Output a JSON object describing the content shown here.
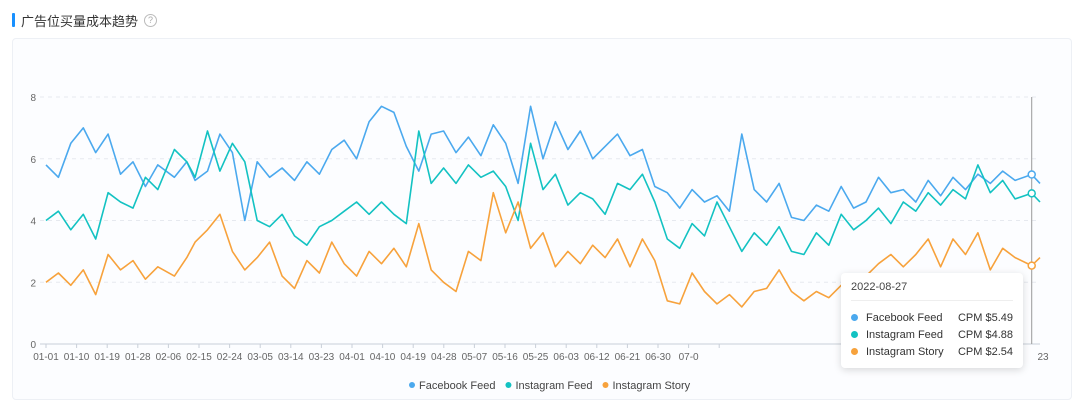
{
  "header": {
    "title": "广告位买量成本趋势",
    "help_icon": "?"
  },
  "colors": {
    "facebook": "#4ba9ee",
    "instagram_feed": "#13c2c2",
    "instagram_story": "#f7a23c",
    "accent": "#1890ff"
  },
  "tooltip": {
    "date": "2022-08-27",
    "rows": [
      {
        "name": "Facebook Feed",
        "value": "CPM $5.49"
      },
      {
        "name": "Instagram Feed",
        "value": "CPM $4.88"
      },
      {
        "name": "Instagram Story",
        "value": "CPM $2.54"
      }
    ]
  },
  "chart_data": {
    "type": "line",
    "ylim": [
      0,
      8
    ],
    "yticks": [
      0,
      2,
      4,
      6,
      8
    ],
    "grid": true,
    "legend_position": "bottom",
    "x_ticks": [
      "01-01",
      "01-10",
      "01-19",
      "01-28",
      "02-06",
      "02-15",
      "02-24",
      "03-05",
      "03-14",
      "03-23",
      "04-01",
      "04-10",
      "04-19",
      "04-28",
      "05-07",
      "05-16",
      "05-25",
      "06-03",
      "06-12",
      "06-21",
      "06-30",
      "07-0",
      "23"
    ],
    "x_start": "2022-01-01",
    "x_end": "2022-08-29",
    "hover_date": "2022-08-27",
    "series": [
      {
        "name": "Facebook Feed",
        "key": "facebook",
        "points": [
          [
            "2022-01-01",
            5.8
          ],
          [
            "2022-01-04",
            5.4
          ],
          [
            "2022-01-07",
            6.5
          ],
          [
            "2022-01-10",
            7.0
          ],
          [
            "2022-01-13",
            6.2
          ],
          [
            "2022-01-16",
            6.8
          ],
          [
            "2022-01-19",
            5.5
          ],
          [
            "2022-01-22",
            5.9
          ],
          [
            "2022-01-25",
            5.1
          ],
          [
            "2022-01-28",
            5.8
          ],
          [
            "2022-02-01",
            5.4
          ],
          [
            "2022-02-04",
            5.9
          ],
          [
            "2022-02-06",
            5.3
          ],
          [
            "2022-02-09",
            5.6
          ],
          [
            "2022-02-12",
            6.8
          ],
          [
            "2022-02-15",
            6.2
          ],
          [
            "2022-02-18",
            4.0
          ],
          [
            "2022-02-21",
            5.9
          ],
          [
            "2022-02-24",
            5.4
          ],
          [
            "2022-02-27",
            5.7
          ],
          [
            "2022-03-02",
            5.3
          ],
          [
            "2022-03-05",
            5.9
          ],
          [
            "2022-03-08",
            5.5
          ],
          [
            "2022-03-11",
            6.3
          ],
          [
            "2022-03-14",
            6.6
          ],
          [
            "2022-03-17",
            6.0
          ],
          [
            "2022-03-20",
            7.2
          ],
          [
            "2022-03-23",
            7.7
          ],
          [
            "2022-03-26",
            7.5
          ],
          [
            "2022-03-29",
            6.4
          ],
          [
            "2022-04-01",
            5.6
          ],
          [
            "2022-04-04",
            6.8
          ],
          [
            "2022-04-07",
            6.9
          ],
          [
            "2022-04-10",
            6.2
          ],
          [
            "2022-04-13",
            6.7
          ],
          [
            "2022-04-16",
            6.1
          ],
          [
            "2022-04-19",
            7.1
          ],
          [
            "2022-04-22",
            6.5
          ],
          [
            "2022-04-25",
            5.2
          ],
          [
            "2022-04-28",
            7.7
          ],
          [
            "2022-05-01",
            6.0
          ],
          [
            "2022-05-04",
            7.2
          ],
          [
            "2022-05-07",
            6.3
          ],
          [
            "2022-05-10",
            6.9
          ],
          [
            "2022-05-13",
            6.0
          ],
          [
            "2022-05-16",
            6.4
          ],
          [
            "2022-05-19",
            6.8
          ],
          [
            "2022-05-22",
            6.1
          ],
          [
            "2022-05-25",
            6.3
          ],
          [
            "2022-05-28",
            5.1
          ],
          [
            "2022-05-31",
            4.9
          ],
          [
            "2022-06-03",
            4.4
          ],
          [
            "2022-06-06",
            5.0
          ],
          [
            "2022-06-09",
            4.6
          ],
          [
            "2022-06-12",
            4.8
          ],
          [
            "2022-06-15",
            4.3
          ],
          [
            "2022-06-18",
            6.8
          ],
          [
            "2022-06-21",
            5.0
          ],
          [
            "2022-06-24",
            4.6
          ],
          [
            "2022-06-27",
            5.2
          ],
          [
            "2022-06-30",
            4.1
          ],
          [
            "2022-07-03",
            4.0
          ],
          [
            "2022-07-06",
            4.5
          ],
          [
            "2022-07-09",
            4.3
          ],
          [
            "2022-07-12",
            5.1
          ],
          [
            "2022-07-15",
            4.4
          ],
          [
            "2022-07-18",
            4.6
          ],
          [
            "2022-07-21",
            5.4
          ],
          [
            "2022-07-24",
            4.9
          ],
          [
            "2022-07-27",
            5.0
          ],
          [
            "2022-07-30",
            4.6
          ],
          [
            "2022-08-02",
            5.3
          ],
          [
            "2022-08-05",
            4.8
          ],
          [
            "2022-08-08",
            5.4
          ],
          [
            "2022-08-11",
            5.0
          ],
          [
            "2022-08-14",
            5.5
          ],
          [
            "2022-08-17",
            5.2
          ],
          [
            "2022-08-20",
            5.6
          ],
          [
            "2022-08-23",
            5.3
          ],
          [
            "2022-08-27",
            5.49
          ],
          [
            "2022-08-29",
            5.2
          ]
        ]
      },
      {
        "name": "Instagram Feed",
        "key": "instagram_feed",
        "points": [
          [
            "2022-01-01",
            4.0
          ],
          [
            "2022-01-04",
            4.3
          ],
          [
            "2022-01-07",
            3.7
          ],
          [
            "2022-01-10",
            4.2
          ],
          [
            "2022-01-13",
            3.4
          ],
          [
            "2022-01-16",
            4.9
          ],
          [
            "2022-01-19",
            4.6
          ],
          [
            "2022-01-22",
            4.4
          ],
          [
            "2022-01-25",
            5.4
          ],
          [
            "2022-01-28",
            5.0
          ],
          [
            "2022-02-01",
            6.3
          ],
          [
            "2022-02-04",
            5.9
          ],
          [
            "2022-02-06",
            5.4
          ],
          [
            "2022-02-09",
            6.9
          ],
          [
            "2022-02-12",
            5.6
          ],
          [
            "2022-02-15",
            6.5
          ],
          [
            "2022-02-18",
            5.9
          ],
          [
            "2022-02-21",
            4.0
          ],
          [
            "2022-02-24",
            3.8
          ],
          [
            "2022-02-27",
            4.2
          ],
          [
            "2022-03-02",
            3.5
          ],
          [
            "2022-03-05",
            3.2
          ],
          [
            "2022-03-08",
            3.8
          ],
          [
            "2022-03-11",
            4.0
          ],
          [
            "2022-03-14",
            4.3
          ],
          [
            "2022-03-17",
            4.6
          ],
          [
            "2022-03-20",
            4.2
          ],
          [
            "2022-03-23",
            4.6
          ],
          [
            "2022-03-26",
            4.2
          ],
          [
            "2022-03-29",
            3.9
          ],
          [
            "2022-04-01",
            6.9
          ],
          [
            "2022-04-04",
            5.2
          ],
          [
            "2022-04-07",
            5.7
          ],
          [
            "2022-04-10",
            5.2
          ],
          [
            "2022-04-13",
            5.8
          ],
          [
            "2022-04-16",
            5.4
          ],
          [
            "2022-04-19",
            5.6
          ],
          [
            "2022-04-22",
            5.1
          ],
          [
            "2022-04-25",
            4.0
          ],
          [
            "2022-04-28",
            6.5
          ],
          [
            "2022-05-01",
            5.0
          ],
          [
            "2022-05-04",
            5.5
          ],
          [
            "2022-05-07",
            4.5
          ],
          [
            "2022-05-10",
            4.9
          ],
          [
            "2022-05-13",
            4.7
          ],
          [
            "2022-05-16",
            4.2
          ],
          [
            "2022-05-19",
            5.2
          ],
          [
            "2022-05-22",
            5.0
          ],
          [
            "2022-05-25",
            5.5
          ],
          [
            "2022-05-28",
            4.6
          ],
          [
            "2022-05-31",
            3.4
          ],
          [
            "2022-06-03",
            3.1
          ],
          [
            "2022-06-06",
            3.9
          ],
          [
            "2022-06-09",
            3.5
          ],
          [
            "2022-06-12",
            4.6
          ],
          [
            "2022-06-15",
            3.8
          ],
          [
            "2022-06-18",
            3.0
          ],
          [
            "2022-06-21",
            3.6
          ],
          [
            "2022-06-24",
            3.2
          ],
          [
            "2022-06-27",
            3.8
          ],
          [
            "2022-06-30",
            3.0
          ],
          [
            "2022-07-03",
            2.9
          ],
          [
            "2022-07-06",
            3.6
          ],
          [
            "2022-07-09",
            3.2
          ],
          [
            "2022-07-12",
            4.2
          ],
          [
            "2022-07-15",
            3.7
          ],
          [
            "2022-07-18",
            4.0
          ],
          [
            "2022-07-21",
            4.4
          ],
          [
            "2022-07-24",
            3.9
          ],
          [
            "2022-07-27",
            4.6
          ],
          [
            "2022-07-30",
            4.3
          ],
          [
            "2022-08-02",
            4.9
          ],
          [
            "2022-08-05",
            4.5
          ],
          [
            "2022-08-08",
            5.0
          ],
          [
            "2022-08-11",
            4.7
          ],
          [
            "2022-08-14",
            5.8
          ],
          [
            "2022-08-17",
            4.9
          ],
          [
            "2022-08-20",
            5.3
          ],
          [
            "2022-08-23",
            4.7
          ],
          [
            "2022-08-27",
            4.88
          ],
          [
            "2022-08-29",
            4.6
          ]
        ]
      },
      {
        "name": "Instagram Story",
        "key": "instagram_story",
        "points": [
          [
            "2022-01-01",
            2.0
          ],
          [
            "2022-01-04",
            2.3
          ],
          [
            "2022-01-07",
            1.9
          ],
          [
            "2022-01-10",
            2.4
          ],
          [
            "2022-01-13",
            1.6
          ],
          [
            "2022-01-16",
            2.9
          ],
          [
            "2022-01-19",
            2.4
          ],
          [
            "2022-01-22",
            2.7
          ],
          [
            "2022-01-25",
            2.1
          ],
          [
            "2022-01-28",
            2.5
          ],
          [
            "2022-02-01",
            2.2
          ],
          [
            "2022-02-04",
            2.8
          ],
          [
            "2022-02-06",
            3.3
          ],
          [
            "2022-02-09",
            3.7
          ],
          [
            "2022-02-12",
            4.2
          ],
          [
            "2022-02-15",
            3.0
          ],
          [
            "2022-02-18",
            2.4
          ],
          [
            "2022-02-21",
            2.8
          ],
          [
            "2022-02-24",
            3.3
          ],
          [
            "2022-02-27",
            2.2
          ],
          [
            "2022-03-02",
            1.8
          ],
          [
            "2022-03-05",
            2.7
          ],
          [
            "2022-03-08",
            2.3
          ],
          [
            "2022-03-11",
            3.3
          ],
          [
            "2022-03-14",
            2.6
          ],
          [
            "2022-03-17",
            2.2
          ],
          [
            "2022-03-20",
            3.0
          ],
          [
            "2022-03-23",
            2.6
          ],
          [
            "2022-03-26",
            3.1
          ],
          [
            "2022-03-29",
            2.5
          ],
          [
            "2022-04-01",
            3.9
          ],
          [
            "2022-04-04",
            2.4
          ],
          [
            "2022-04-07",
            2.0
          ],
          [
            "2022-04-10",
            1.7
          ],
          [
            "2022-04-13",
            3.0
          ],
          [
            "2022-04-16",
            2.7
          ],
          [
            "2022-04-19",
            4.9
          ],
          [
            "2022-04-22",
            3.6
          ],
          [
            "2022-04-25",
            4.6
          ],
          [
            "2022-04-28",
            3.1
          ],
          [
            "2022-05-01",
            3.6
          ],
          [
            "2022-05-04",
            2.5
          ],
          [
            "2022-05-07",
            3.0
          ],
          [
            "2022-05-10",
            2.6
          ],
          [
            "2022-05-13",
            3.2
          ],
          [
            "2022-05-16",
            2.8
          ],
          [
            "2022-05-19",
            3.4
          ],
          [
            "2022-05-22",
            2.5
          ],
          [
            "2022-05-25",
            3.4
          ],
          [
            "2022-05-28",
            2.7
          ],
          [
            "2022-05-31",
            1.4
          ],
          [
            "2022-06-03",
            1.3
          ],
          [
            "2022-06-06",
            2.3
          ],
          [
            "2022-06-09",
            1.7
          ],
          [
            "2022-06-12",
            1.3
          ],
          [
            "2022-06-15",
            1.6
          ],
          [
            "2022-06-18",
            1.2
          ],
          [
            "2022-06-21",
            1.7
          ],
          [
            "2022-06-24",
            1.8
          ],
          [
            "2022-06-27",
            2.4
          ],
          [
            "2022-06-30",
            1.7
          ],
          [
            "2022-07-03",
            1.4
          ],
          [
            "2022-07-06",
            1.7
          ],
          [
            "2022-07-09",
            1.5
          ],
          [
            "2022-07-12",
            1.9
          ],
          [
            "2022-07-15",
            1.6
          ],
          [
            "2022-07-18",
            2.2
          ],
          [
            "2022-07-21",
            2.6
          ],
          [
            "2022-07-24",
            2.9
          ],
          [
            "2022-07-27",
            2.5
          ],
          [
            "2022-07-30",
            2.9
          ],
          [
            "2022-08-02",
            3.4
          ],
          [
            "2022-08-05",
            2.5
          ],
          [
            "2022-08-08",
            3.4
          ],
          [
            "2022-08-11",
            2.9
          ],
          [
            "2022-08-14",
            3.6
          ],
          [
            "2022-08-17",
            2.4
          ],
          [
            "2022-08-20",
            3.1
          ],
          [
            "2022-08-23",
            2.8
          ],
          [
            "2022-08-27",
            2.54
          ],
          [
            "2022-08-29",
            2.8
          ]
        ]
      }
    ]
  }
}
